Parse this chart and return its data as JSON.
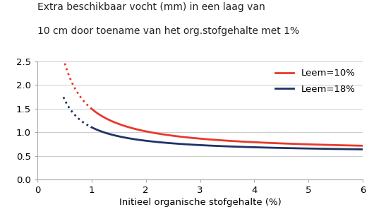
{
  "title_line1": "Extra beschikbaar vocht (mm) in een laag van",
  "title_line2": "10 cm door toename van het org.stofgehalte met 1%",
  "xlabel": "Initieel organische stofgehalte (%)",
  "xlim": [
    0,
    6
  ],
  "ylim": [
    0,
    2.5
  ],
  "xticks": [
    0,
    1,
    2,
    3,
    4,
    5,
    6
  ],
  "yticks": [
    0,
    0.5,
    1,
    1.5,
    2,
    2.5
  ],
  "leem10_color": "#e8392a",
  "leem18_color": "#1f3464",
  "leem10_label": "Leem=10%",
  "leem18_label": "Leem=18%",
  "x_dotted_start": 0.48,
  "x_solid_start": 1.0,
  "x_end": 6.0,
  "leem10_a": 0.92,
  "leem10_b": 1.05,
  "leem10_c": 0.575,
  "leem18_a": 0.55,
  "leem18_b": 1.05,
  "leem18_c": 0.555,
  "background_color": "#ffffff",
  "grid_color": "#cccccc",
  "title_fontsize": 10,
  "axis_fontsize": 9.5,
  "legend_fontsize": 9.5,
  "linewidth": 2.0
}
